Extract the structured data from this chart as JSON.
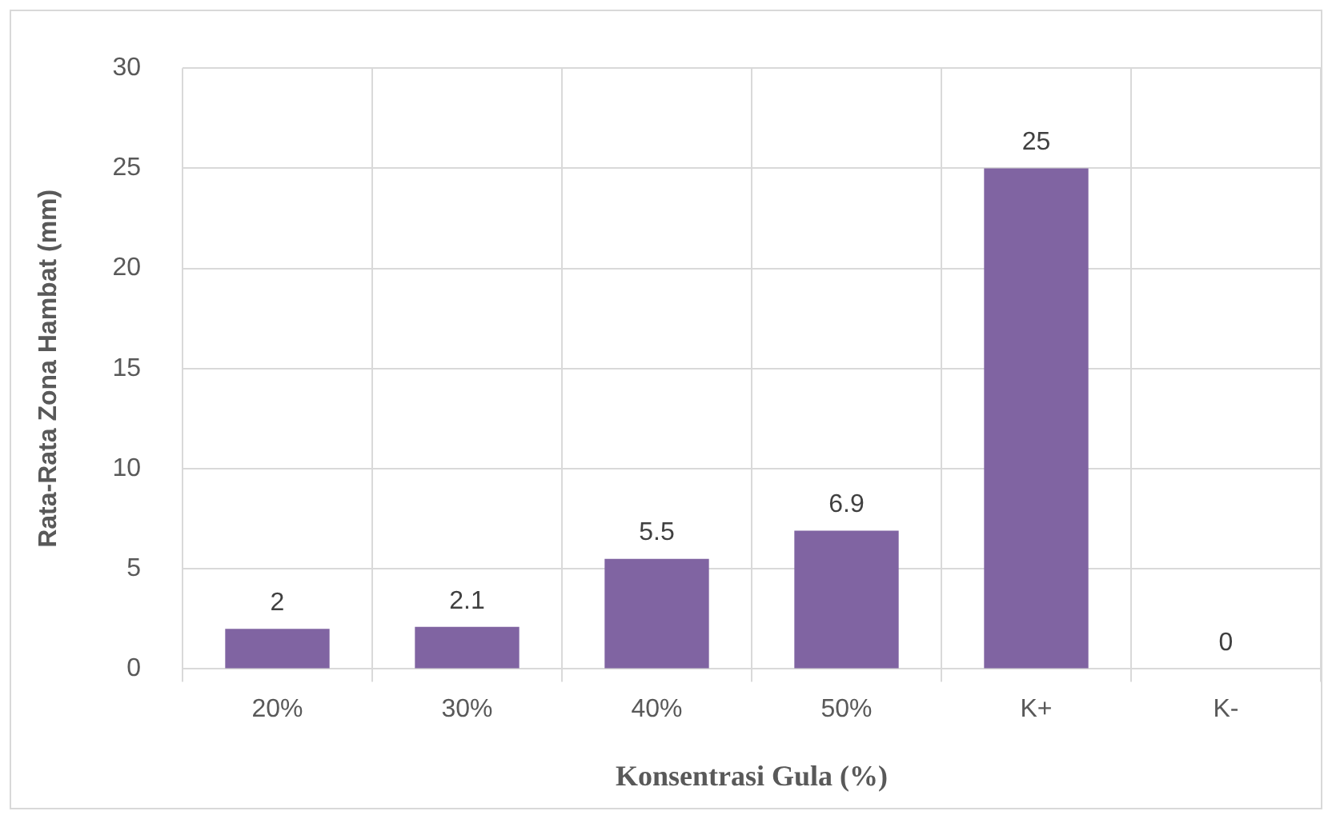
{
  "chart_data": {
    "type": "bar",
    "xlabel": "Konsentrasi Gula (%)",
    "ylabel": "Rata-Rata Zona Hambat (mm)",
    "categories": [
      "20%",
      "30%",
      "40%",
      "50%",
      "K+",
      "K-"
    ],
    "values": [
      2,
      2.1,
      5.5,
      6.9,
      25,
      0
    ],
    "color": "#8064a2",
    "ylim": [
      0,
      30
    ],
    "yticks": [
      0,
      5,
      10,
      15,
      20,
      25,
      30
    ],
    "grid": true,
    "data_labels": true
  }
}
